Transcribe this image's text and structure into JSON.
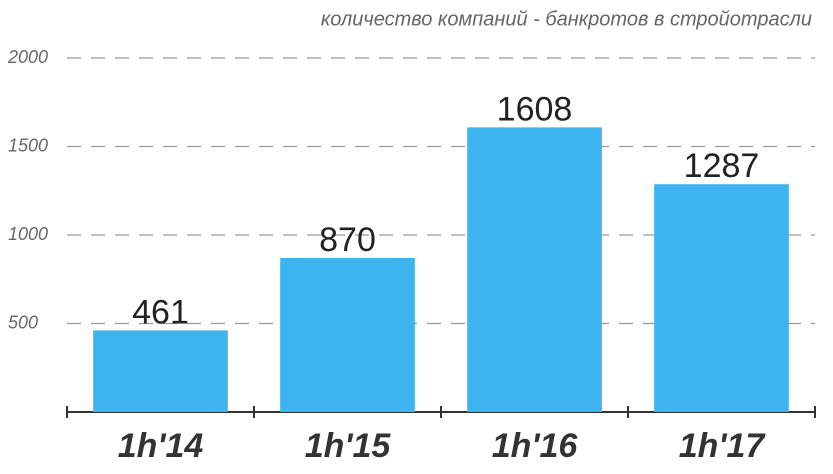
{
  "chart_data": {
    "type": "bar",
    "title": "количество компаний - банкротов в стройотрасли",
    "categories": [
      "1h'14",
      "1h'15",
      "1h'16",
      "1h'17"
    ],
    "values": [
      461,
      870,
      1608,
      1287
    ],
    "color": "#3db3f0",
    "ylim": [
      0,
      2000
    ],
    "yticks": [
      500,
      1000,
      1500,
      2000
    ],
    "grid": true
  }
}
